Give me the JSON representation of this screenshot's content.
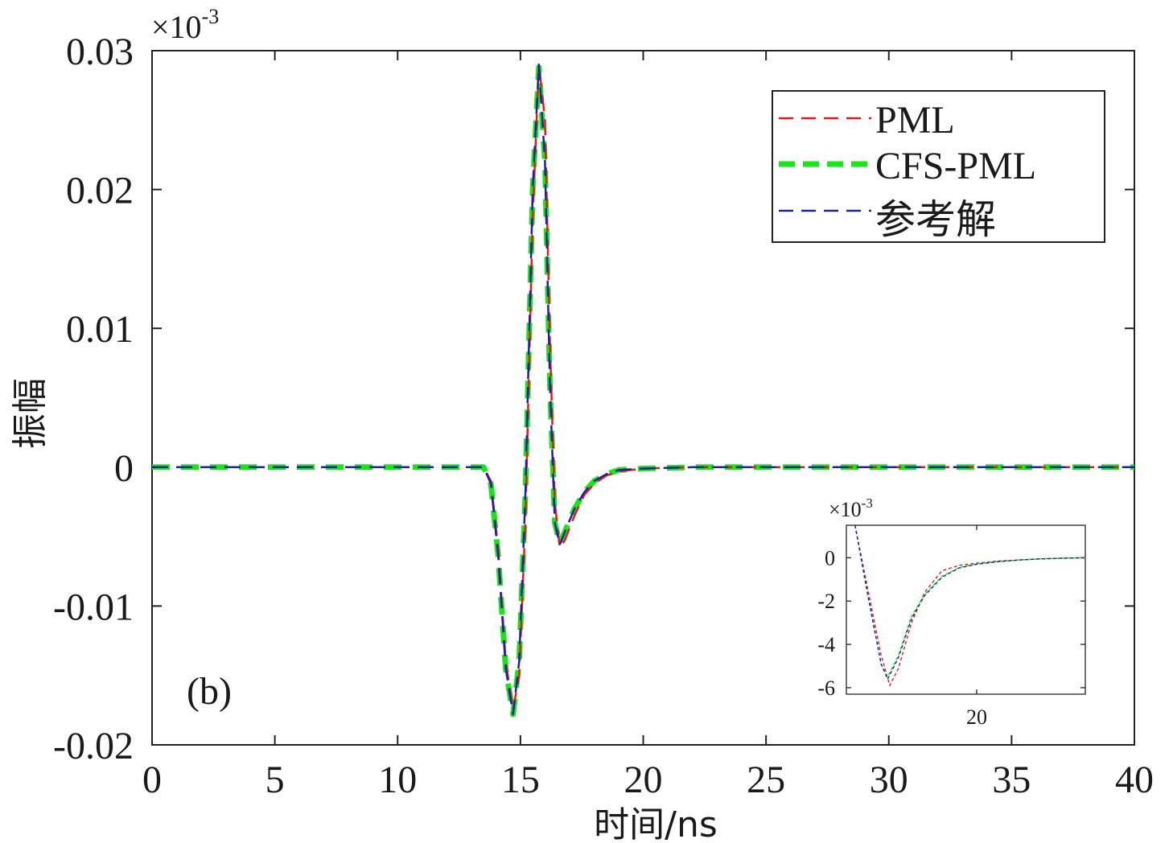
{
  "chart_data": [
    {
      "type": "line",
      "panel_label": "(b)",
      "xlabel": "时间/ns",
      "ylabel": "振幅",
      "y_multiplier": "×10",
      "y_multiplier_exp": "-3",
      "xlim": [
        0,
        40
      ],
      "ylim": [
        -0.02,
        0.03
      ],
      "x_ticks": [
        "0",
        "5",
        "10",
        "15",
        "20",
        "25",
        "30",
        "35",
        "40"
      ],
      "y_ticks": [
        "-0.02",
        "-0.01",
        "0",
        "0.01",
        "0.02",
        "0.03"
      ],
      "grid": false,
      "legend_position": "top-right",
      "series": [
        {
          "name": "PML",
          "color": "#e31a1c",
          "style": "dashed-thin",
          "x": [
            0,
            13.5,
            13.8,
            14.1,
            14.4,
            14.7,
            14.95,
            15.2,
            15.5,
            15.75,
            16.0,
            16.2,
            16.4,
            16.6,
            16.8,
            17.2,
            17.6,
            18.0,
            18.5,
            19.0,
            20.0,
            22.0,
            25.0,
            30.0,
            40.0
          ],
          "y": [
            0,
            0,
            -0.001,
            -0.006,
            -0.014,
            -0.0175,
            -0.015,
            -0.004,
            0.018,
            0.029,
            0.025,
            0.009,
            -0.0025,
            -0.0058,
            -0.0053,
            -0.0035,
            -0.002,
            -0.0012,
            -0.0006,
            -0.0003,
            -0.0001,
            0,
            0,
            0,
            0
          ]
        },
        {
          "name": "CFS-PML",
          "color": "#19e619",
          "style": "dashed-thick",
          "x": [
            0,
            13.5,
            13.8,
            14.1,
            14.4,
            14.7,
            14.95,
            15.2,
            15.5,
            15.75,
            16.0,
            16.2,
            16.4,
            16.6,
            16.8,
            17.2,
            17.6,
            18.0,
            18.5,
            19.0,
            20.0,
            22.0,
            25.0,
            30.0,
            40.0
          ],
          "y": [
            0,
            0,
            -0.0012,
            -0.0065,
            -0.0145,
            -0.0178,
            -0.014,
            -0.002,
            0.02,
            0.0288,
            0.022,
            0.006,
            -0.004,
            -0.0055,
            -0.0047,
            -0.003,
            -0.0018,
            -0.001,
            -0.0005,
            -0.0002,
            -0.0001,
            0,
            0,
            0,
            0
          ]
        },
        {
          "name": "参考解",
          "color": "#1a22a6",
          "style": "dashed-thin",
          "x": [
            0,
            13.5,
            13.8,
            14.1,
            14.4,
            14.7,
            14.95,
            15.2,
            15.5,
            15.75,
            16.0,
            16.2,
            16.4,
            16.6,
            16.8,
            17.2,
            17.6,
            18.0,
            18.5,
            19.0,
            20.0,
            22.0,
            25.0,
            30.0,
            40.0
          ],
          "y": [
            0,
            0,
            -0.0012,
            -0.0065,
            -0.0145,
            -0.0178,
            -0.014,
            -0.002,
            0.02,
            0.029,
            0.022,
            0.006,
            -0.004,
            -0.0056,
            -0.0047,
            -0.003,
            -0.0018,
            -0.001,
            -0.0005,
            -0.0002,
            -0.0001,
            0,
            0,
            0,
            0
          ]
        }
      ]
    },
    {
      "type": "line",
      "title": "inset",
      "y_multiplier": "×10",
      "y_multiplier_exp": "-3",
      "xlim": [
        17,
        22.5
      ],
      "ylim": [
        -6.3,
        1.5
      ],
      "x_ticks": [
        "20"
      ],
      "x_tick_values": [
        20
      ],
      "y_ticks": [
        "0",
        "-2",
        "-4",
        "-6"
      ],
      "y_tick_values": [
        0,
        -2,
        -4,
        -6
      ],
      "series": [
        {
          "name": "PML",
          "color": "#e31a1c",
          "x": [
            17.2,
            17.5,
            17.8,
            18.0,
            18.2,
            18.5,
            18.8,
            19.2,
            19.6,
            20.0,
            20.5,
            21.0,
            21.5,
            22.0,
            22.5
          ],
          "y": [
            1.5,
            -1.5,
            -4.5,
            -5.9,
            -5.1,
            -3.0,
            -1.6,
            -0.6,
            -0.35,
            -0.25,
            -0.15,
            -0.1,
            -0.05,
            -0.02,
            0
          ]
        },
        {
          "name": "CFS-PML",
          "color": "#19e619",
          "x": [
            17.2,
            17.5,
            17.8,
            17.95,
            18.2,
            18.5,
            18.8,
            19.2,
            19.6,
            20.0,
            20.5,
            21.0,
            21.5,
            22.0,
            22.5
          ],
          "y": [
            1.5,
            -1.8,
            -4.9,
            -5.5,
            -4.5,
            -2.7,
            -1.7,
            -0.85,
            -0.45,
            -0.28,
            -0.18,
            -0.1,
            -0.05,
            -0.02,
            0
          ]
        },
        {
          "name": "参考解",
          "color": "#1a22a6",
          "x": [
            17.2,
            17.5,
            17.8,
            17.95,
            18.2,
            18.5,
            18.8,
            19.2,
            19.6,
            20.0,
            20.5,
            21.0,
            21.5,
            22.0,
            22.5
          ],
          "y": [
            1.5,
            -1.8,
            -4.9,
            -5.6,
            -4.6,
            -2.8,
            -1.75,
            -0.9,
            -0.47,
            -0.3,
            -0.18,
            -0.1,
            -0.05,
            -0.02,
            0
          ]
        }
      ]
    }
  ]
}
